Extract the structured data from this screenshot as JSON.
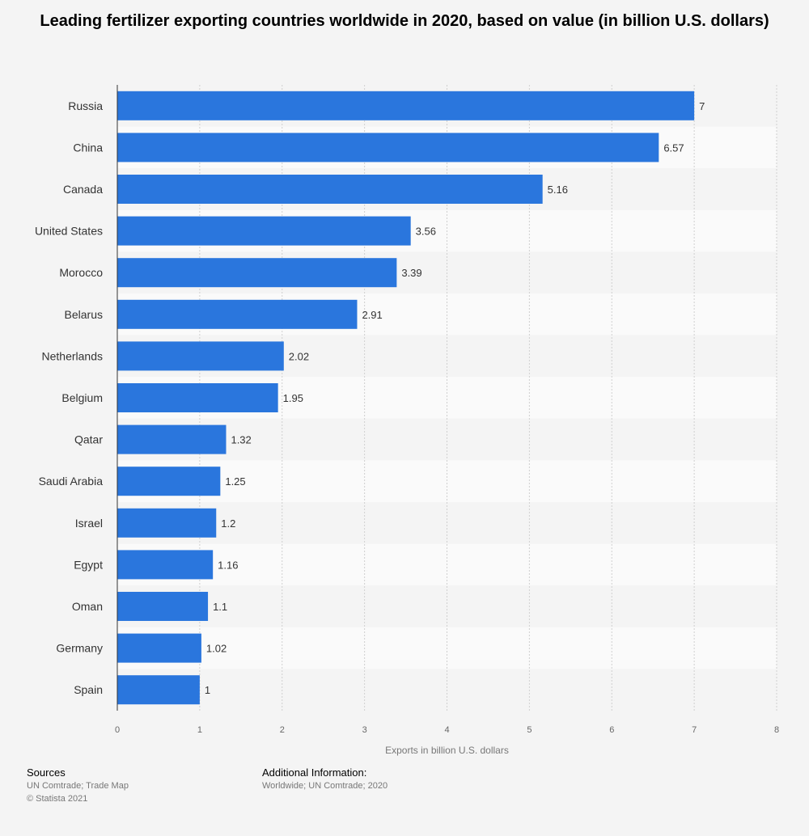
{
  "chart_data": {
    "type": "bar",
    "orientation": "horizontal",
    "title": "Leading fertilizer exporting countries worldwide in 2020, based on value (in billion U.S. dollars)",
    "xlabel": "Exports in billion U.S. dollars",
    "ylabel": "",
    "categories": [
      "Russia",
      "China",
      "Canada",
      "United States",
      "Morocco",
      "Belarus",
      "Netherlands",
      "Belgium",
      "Qatar",
      "Saudi Arabia",
      "Israel",
      "Egypt",
      "Oman",
      "Germany",
      "Spain"
    ],
    "values": [
      7,
      6.57,
      5.16,
      3.56,
      3.39,
      2.91,
      2.02,
      1.95,
      1.32,
      1.25,
      1.2,
      1.16,
      1.1,
      1.02,
      1
    ],
    "xlim": [
      0,
      8
    ],
    "xticks": [
      0,
      1,
      2,
      3,
      4,
      5,
      6,
      7,
      8
    ],
    "grid": "vertical dotted",
    "bar_color": "#2a76dd",
    "data_labels": true
  },
  "footer": {
    "sources_heading": "Sources",
    "sources_line1": "UN Comtrade; Trade Map",
    "sources_line2": "© Statista 2021",
    "info_heading": "Additional Information:",
    "info_line1": "Worldwide; UN Comtrade; 2020"
  }
}
